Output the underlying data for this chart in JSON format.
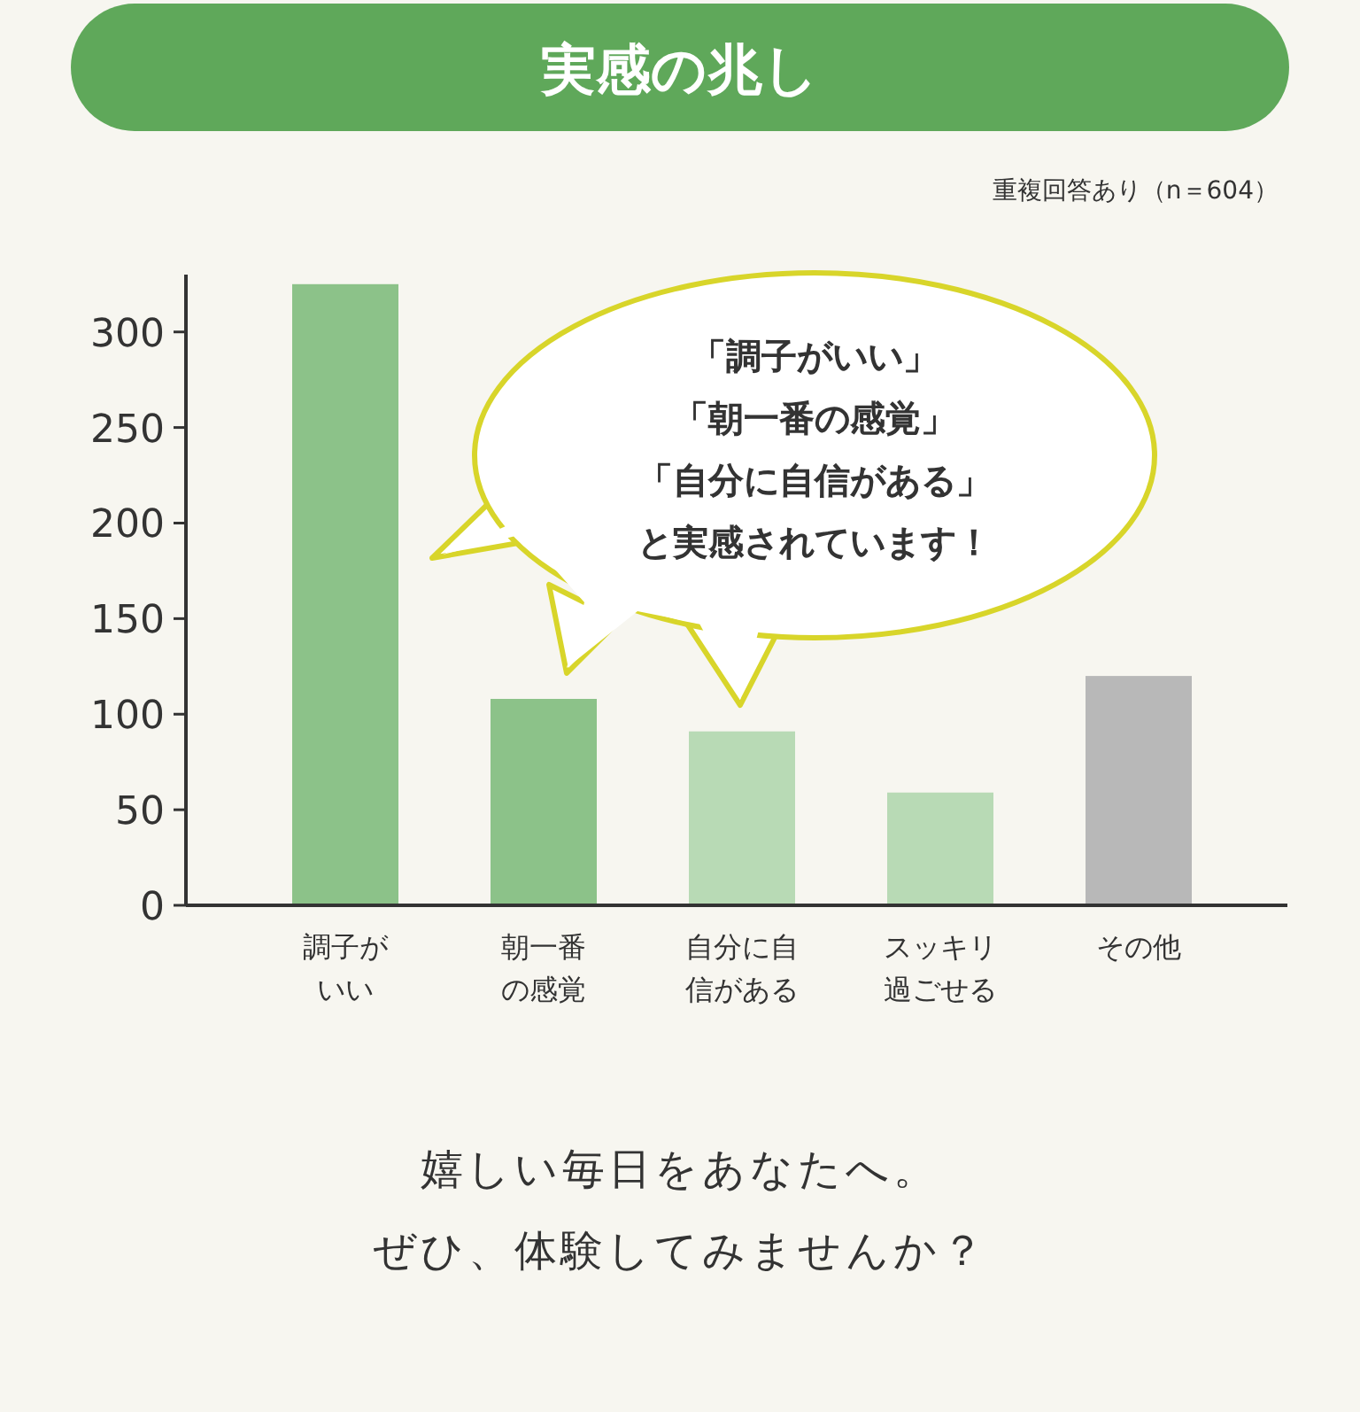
{
  "chart_data": {
    "type": "bar",
    "title": "実感の兆し",
    "categories": [
      "調子がいい",
      "朝一番の感覚",
      "自分に自信がある",
      "スッキリ過ごせる",
      "その他"
    ],
    "values": [
      325,
      108,
      91,
      59,
      120
    ],
    "colors": [
      "#8cc289",
      "#8cc289",
      "#b8dab5",
      "#b8dab5",
      "#b8b8b8"
    ],
    "ylim": [
      0,
      330
    ],
    "yticks": [
      0,
      50,
      100,
      150,
      200,
      250,
      300
    ],
    "grid": false,
    "annotations": [
      "重複回答あり（n＝604）",
      "「調子がいい」",
      "「朝一番の感覚」",
      "「自分に自信がある」",
      "と実感されています！",
      "嬉しい毎日をあなたへ。",
      "ぜひ、体験してみませんか？"
    ]
  }
}
